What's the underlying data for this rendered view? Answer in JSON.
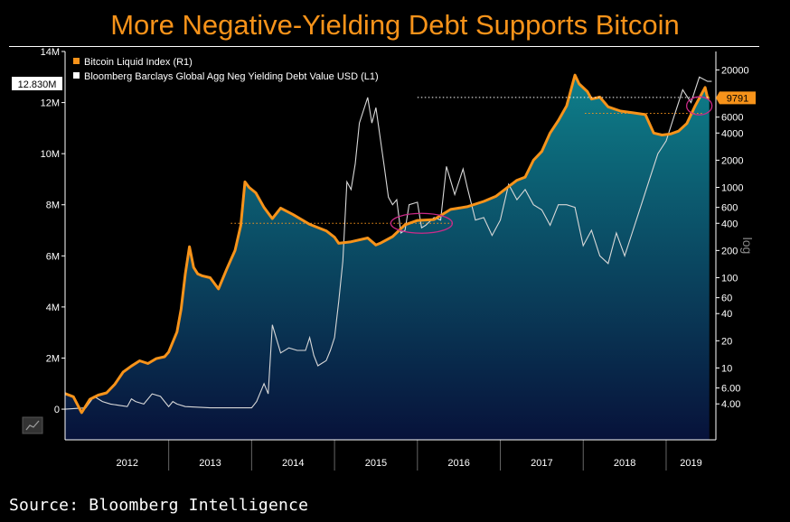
{
  "title": "More Negative-Yielding Debt Supports Bitcoin",
  "source": "Source: Bloomberg Intelligence",
  "colors": {
    "bitcoin": "#f7931a",
    "debt": "#d8d8d8",
    "area_top": "#0e7f8a",
    "area_bottom": "#07123a",
    "callout_bg": "#f7931a",
    "highlight": "#cc2a8a"
  },
  "chart_data": {
    "type": "line",
    "title": "More Negative-Yielding Debt Supports Bitcoin",
    "xlabel": "",
    "x_ticks": [
      "2012",
      "2013",
      "2014",
      "2015",
      "2016",
      "2017",
      "2018",
      "2019"
    ],
    "x_range": [
      2011.75,
      2019.6
    ],
    "left_axis": {
      "label": "Bloomberg Barclays Global Agg Neg Yielding Debt Value USD (L1)",
      "ticks": [
        "0",
        "2M",
        "4M",
        "6M",
        "8M",
        "10M",
        "12M",
        "14M"
      ],
      "tick_values": [
        0,
        2,
        4,
        6,
        8,
        10,
        12,
        14
      ],
      "unit": "M",
      "range": [
        -1.2,
        14
      ],
      "last_value_label": "12.830M"
    },
    "right_axis": {
      "label": "Bitcoin Liquid Index (R1)",
      "scale": "log",
      "title": "log",
      "ticks": [
        "4.00",
        "6.00",
        "10",
        "20",
        "40",
        "60",
        "100",
        "200",
        "400",
        "600",
        "1000",
        "2000",
        "4000",
        "6000",
        "20000"
      ],
      "tick_values": [
        4,
        6,
        10,
        20,
        40,
        60,
        100,
        200,
        400,
        600,
        1000,
        2000,
        4000,
        6000,
        20000
      ],
      "range": [
        1.6,
        32000
      ],
      "last_value_label": "9791"
    },
    "legend": [
      "Bitcoin Liquid Index (R1)",
      "Bloomberg Barclays Global Agg Neg Yielding Debt Value USD (L1)"
    ],
    "series": [
      {
        "name": "Bitcoin Liquid Index (R1)",
        "axis": "right",
        "x": [
          2011.75,
          2011.85,
          2011.95,
          2012.05,
          2012.15,
          2012.25,
          2012.35,
          2012.45,
          2012.55,
          2012.65,
          2012.75,
          2012.85,
          2012.95,
          2013.0,
          2013.1,
          2013.15,
          2013.2,
          2013.25,
          2013.3,
          2013.35,
          2013.4,
          2013.5,
          2013.6,
          2013.7,
          2013.8,
          2013.87,
          2013.92,
          2013.97,
          2014.05,
          2014.15,
          2014.25,
          2014.35,
          2014.5,
          2014.7,
          2014.9,
          2015.0,
          2015.05,
          2015.2,
          2015.4,
          2015.5,
          2015.55,
          2015.7,
          2015.85,
          2016.0,
          2016.2,
          2016.4,
          2016.6,
          2016.8,
          2016.95,
          2017.1,
          2017.2,
          2017.3,
          2017.4,
          2017.5,
          2017.6,
          2017.7,
          2017.8,
          2017.9,
          2017.95,
          2018.05,
          2018.1,
          2018.2,
          2018.3,
          2018.45,
          2018.6,
          2018.75,
          2018.85,
          2018.95,
          2019.05,
          2019.15,
          2019.25,
          2019.35,
          2019.42,
          2019.47,
          2019.5,
          2019.52
        ],
        "values": [
          5.2,
          4.8,
          3.2,
          4.5,
          5.0,
          5.3,
          6.6,
          9.0,
          10.5,
          12.0,
          11.2,
          12.7,
          13.3,
          15,
          25,
          45,
          110,
          220,
          130,
          110,
          105,
          100,
          75,
          125,
          200,
          380,
          1150,
          1000,
          870,
          600,
          450,
          590,
          500,
          390,
          330,
          280,
          240,
          250,
          275,
          230,
          240,
          285,
          385,
          430,
          440,
          570,
          610,
          700,
          800,
          1020,
          1200,
          1300,
          2000,
          2500,
          4000,
          5500,
          8000,
          17500,
          14000,
          11500,
          9500,
          10000,
          7800,
          7000,
          6700,
          6400,
          4000,
          3800,
          3900,
          4200,
          5100,
          8000,
          10500,
          12800,
          9791,
          9791
        ]
      },
      {
        "name": "Bloomberg Barclays Global Agg Neg Yielding Debt Value USD (L1)",
        "axis": "left",
        "x": [
          2011.75,
          2012.0,
          2012.1,
          2012.2,
          2012.3,
          2012.4,
          2012.5,
          2012.55,
          2012.6,
          2012.7,
          2012.8,
          2012.9,
          2013.0,
          2013.05,
          2013.1,
          2013.2,
          2013.5,
          2014.0,
          2014.06,
          2014.15,
          2014.2,
          2014.25,
          2014.35,
          2014.45,
          2014.55,
          2014.6,
          2014.65,
          2014.7,
          2014.75,
          2014.8,
          2014.85,
          2014.9,
          2014.95,
          2015.0,
          2015.05,
          2015.1,
          2015.15,
          2015.2,
          2015.25,
          2015.3,
          2015.4,
          2015.45,
          2015.5,
          2015.6,
          2015.65,
          2015.7,
          2015.75,
          2015.8,
          2015.85,
          2015.9,
          2016.0,
          2016.05,
          2016.1,
          2016.2,
          2016.28,
          2016.35,
          2016.45,
          2016.55,
          2016.6,
          2016.7,
          2016.8,
          2016.9,
          2017.0,
          2017.1,
          2017.2,
          2017.3,
          2017.4,
          2017.5,
          2017.6,
          2017.7,
          2017.8,
          2017.9,
          2018.0,
          2018.1,
          2018.2,
          2018.3,
          2018.4,
          2018.5,
          2018.6,
          2018.7,
          2018.8,
          2018.9,
          2019.0,
          2019.1,
          2019.2,
          2019.3,
          2019.4,
          2019.5,
          2019.55
        ],
        "values": [
          0.0,
          0.05,
          0.5,
          0.3,
          0.2,
          0.15,
          0.1,
          0.4,
          0.3,
          0.2,
          0.6,
          0.5,
          0.1,
          0.3,
          0.2,
          0.1,
          0.05,
          0.05,
          0.3,
          1.0,
          0.6,
          3.3,
          2.2,
          2.4,
          2.3,
          2.3,
          2.3,
          2.8,
          2.1,
          1.7,
          1.8,
          1.9,
          2.3,
          2.8,
          4.2,
          5.8,
          8.9,
          8.6,
          9.6,
          11.2,
          12.2,
          11.2,
          11.8,
          9.5,
          8.3,
          8.0,
          8.2,
          6.9,
          7.0,
          8.0,
          8.1,
          7.1,
          7.2,
          7.5,
          7.4,
          9.5,
          8.4,
          9.4,
          8.7,
          7.4,
          7.5,
          6.8,
          7.4,
          8.8,
          8.2,
          8.6,
          8.0,
          7.8,
          7.2,
          8.0,
          8.0,
          7.9,
          6.4,
          7.0,
          6.0,
          5.7,
          6.9,
          6.0,
          7.0,
          8.0,
          9.0,
          10.0,
          10.5,
          11.5,
          12.5,
          12.0,
          13.0,
          12.83,
          12.83
        ]
      }
    ],
    "annotations": [
      {
        "type": "dotted_line",
        "axis": "right",
        "value": 400,
        "from": 2013.75,
        "to": 2016.45
      },
      {
        "type": "dotted_line",
        "axis": "left",
        "value": 12.2,
        "from": 2016.0,
        "to": 2019.52
      },
      {
        "type": "dotted_line",
        "axis": "right",
        "value": 6600,
        "from": 2018.02,
        "to": 2019.45
      },
      {
        "type": "ellipse",
        "at_x": 2016.05,
        "at_axis": "right",
        "at_value": 400
      },
      {
        "type": "ellipse",
        "at_x": 2019.4,
        "at_axis": "right",
        "at_value": 8000
      }
    ]
  }
}
